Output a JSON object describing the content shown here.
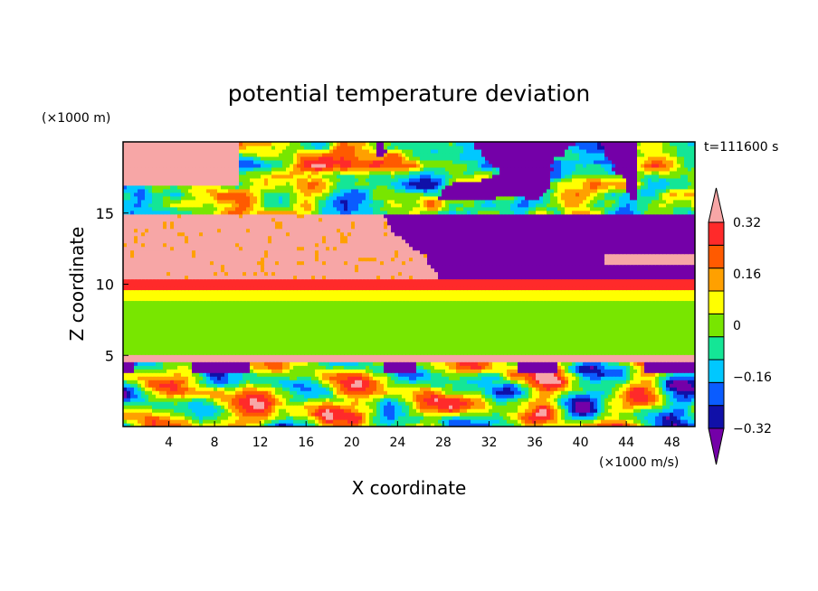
{
  "chart_data": {
    "type": "heatmap",
    "title": "potential temperature deviation",
    "xlabel": "X coordinate",
    "ylabel": "Z coordinate",
    "x_unit": "(×1000 m/s)",
    "y_unit": "(×1000 m)",
    "time_label": "t=111600 s",
    "xlim": [
      0,
      50
    ],
    "ylim": [
      0,
      20
    ],
    "x_ticks": [
      4,
      8,
      12,
      16,
      20,
      24,
      28,
      32,
      36,
      40,
      44,
      48
    ],
    "y_ticks": [
      5,
      10,
      15
    ],
    "colorbar": {
      "levels": [
        -0.4,
        -0.32,
        -0.24,
        -0.16,
        -0.08,
        0,
        0.08,
        0.16,
        0.24,
        0.32,
        0.4
      ],
      "tick_labels": [
        "0.32",
        "0.16",
        "0",
        "−0.16",
        "−0.32"
      ],
      "tick_values": [
        0.32,
        0.16,
        0,
        -0.16,
        -0.32
      ],
      "colors": [
        "#7400a8",
        "#1010a8",
        "#0a5cff",
        "#00c8ff",
        "#14e696",
        "#78e600",
        "#ffff00",
        "#ffa000",
        "#ff5a00",
        "#ff2a2a",
        "#f7a6a6"
      ]
    },
    "bands": [
      {
        "z0": 0,
        "z1": 4.6,
        "value": "mixed"
      },
      {
        "z0": 4.6,
        "z1": 5.0,
        "value": 0.4
      },
      {
        "z0": 5.0,
        "z1": 8.8,
        "value": 0.02
      },
      {
        "z0": 8.8,
        "z1": 9.6,
        "value": 0.12
      },
      {
        "z0": 9.6,
        "z1": 10.4,
        "value": 0.36
      },
      {
        "z0": 10.4,
        "z1": 15.0,
        "value": "split"
      },
      {
        "z0": 15.0,
        "z1": 19.8,
        "value": "mixed"
      }
    ]
  }
}
